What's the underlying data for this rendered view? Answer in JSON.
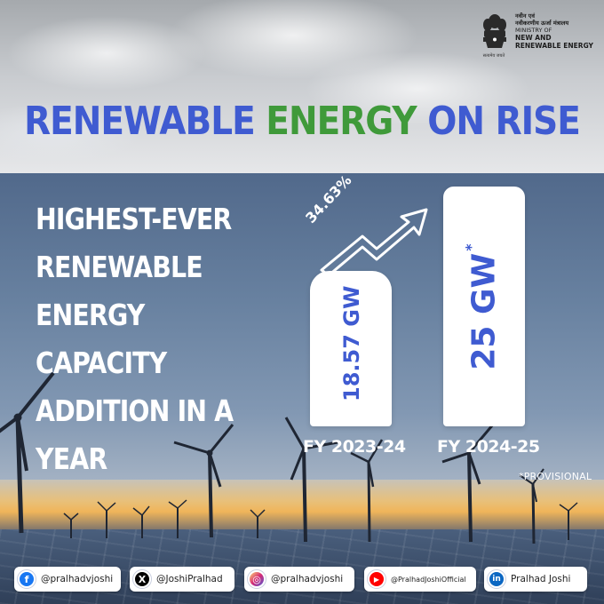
{
  "ministry": {
    "hindi_line1": "नवीन एवं",
    "hindi_line2": "नवीकरणीय ऊर्जा मंत्रालय",
    "english_line1": "MINISTRY OF",
    "english_line2": "NEW AND",
    "english_line3": "RENEWABLE ENERGY",
    "motto": "सत्यमेव जयते"
  },
  "title": {
    "part1": "RENEWABLE",
    "part2": "ENERGY",
    "part3": "ON RISE"
  },
  "headline": {
    "lines": [
      "HIGHEST-EVER",
      "RENEWABLE",
      "ENERGY",
      "CAPACITY",
      "ADDITION IN A",
      "YEAR"
    ]
  },
  "chart_data": {
    "type": "bar",
    "title": "",
    "categories": [
      "FY 2023-24",
      "FY 2024-25"
    ],
    "values": [
      18.57,
      25
    ],
    "value_labels": [
      "18.57 GW",
      "25 GW"
    ],
    "value_label_suffix_2": "*",
    "unit": "GW",
    "growth_label": "34.63%",
    "footnote": "*PROVISIONAL",
    "ylim": [
      0,
      25
    ]
  },
  "social": [
    {
      "platform": "facebook",
      "handle": "@pralhadvjoshi",
      "icon": "facebook-icon",
      "color": "#1877f2"
    },
    {
      "platform": "x",
      "handle": "@JoshiPralhad",
      "icon": "x-icon",
      "color": "#000000"
    },
    {
      "platform": "instagram",
      "handle": "@pralhadvjoshi",
      "icon": "instagram-icon",
      "color": "#d6249f"
    },
    {
      "platform": "youtube",
      "handle": "@PralhadJoshiOfficial",
      "icon": "youtube-icon",
      "color": "#ff0000"
    },
    {
      "platform": "linkedin",
      "handle": "Pralhad Joshi",
      "icon": "linkedin-icon",
      "color": "#0a66c2"
    }
  ],
  "colors": {
    "title_blue": "#3f5bd1",
    "title_green": "#3f9a3a",
    "bar_fill": "#ffffff",
    "bar_text": "#3f5bd1"
  }
}
